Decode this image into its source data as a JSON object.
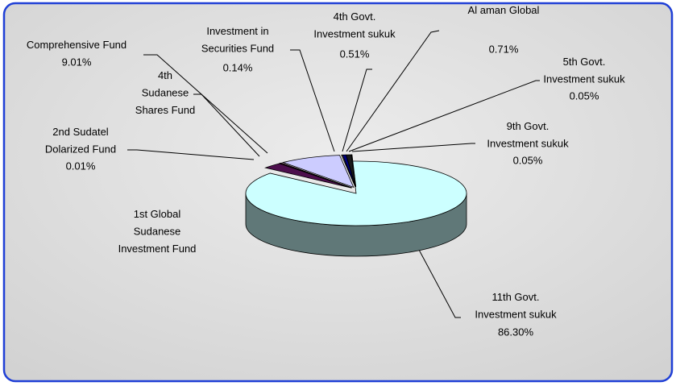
{
  "chart_data": {
    "type": "pie",
    "categories": [
      "11th Govt. Investment sukuk",
      "1st Global Sudanese Investment Fund",
      "2nd Sudatel Dolarized Fund",
      "4th Sudanese Shares Fund",
      "Comprehensive Fund",
      "Investment in Securities Fund",
      "4th Govt. Investment sukuk",
      "Al aman Global Fund",
      "5th Govt. Investment sukuk",
      "9th Govt. Investment sukuk"
    ],
    "values": [
      86.3,
      2.9,
      0.01,
      0.3,
      9.01,
      0.14,
      0.51,
      0.71,
      0.05,
      0.05
    ],
    "value_labels": [
      "86.30%",
      null,
      "0.01%",
      null,
      "9.01%",
      "0.14%",
      "0.51%",
      "0.71%",
      "0.05%",
      "0.05%"
    ],
    "colors": [
      "#ccffff",
      "#4d0f4d",
      "#800040",
      "#993366",
      "#ccccff",
      "#ffffcc",
      "#000080",
      "#1a1a1a",
      "#333399",
      "#0000ff"
    ]
  }
}
